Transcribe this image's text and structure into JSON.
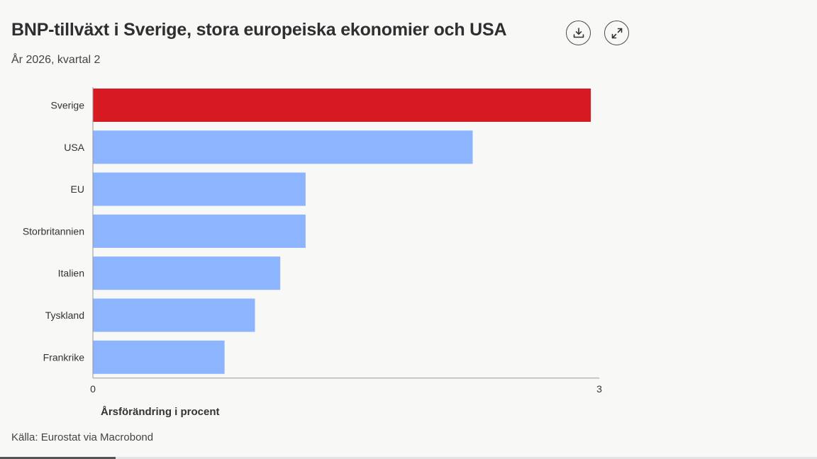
{
  "header": {
    "title": "BNP-tillväxt i Sverige, stora europeiska ekonomier och USA",
    "subtitle": "År 2026, kvartal 2"
  },
  "toolbar": {
    "download_icon": "download-icon",
    "expand_icon": "expand-icon"
  },
  "chart_data": {
    "type": "bar",
    "orientation": "horizontal",
    "categories": [
      "Sverige",
      "USA",
      "EU",
      "Storbritannien",
      "Italien",
      "Tyskland",
      "Frankrike"
    ],
    "values": [
      2.95,
      2.25,
      1.26,
      1.26,
      1.11,
      0.96,
      0.78
    ],
    "highlight_category": "Sverige",
    "colors": {
      "highlight": "#d71921",
      "default": "#8cb4ff",
      "axis": "#999999"
    },
    "xlim": [
      0,
      3
    ],
    "xticks": [
      "0",
      "3"
    ],
    "xlabel": "Årsförändring i procent",
    "grid": false,
    "legend": "none"
  },
  "footer": {
    "source": "Källa: Eurostat via Macrobond"
  }
}
